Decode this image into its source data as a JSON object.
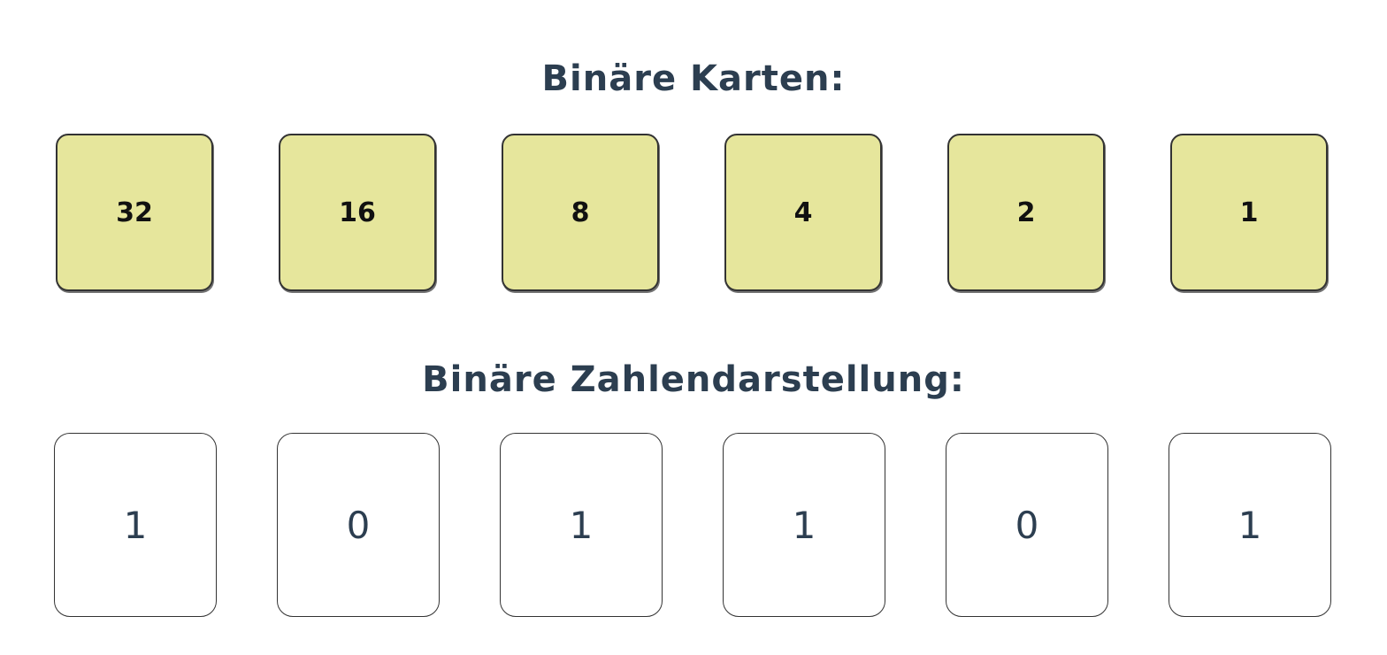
{
  "headings": {
    "cards": "Binäre Karten:",
    "binary": "Binäre Zahlendarstellung:"
  },
  "cards": [
    {
      "value": "32"
    },
    {
      "value": "16"
    },
    {
      "value": "8"
    },
    {
      "value": "4"
    },
    {
      "value": "2"
    },
    {
      "value": "1"
    }
  ],
  "bits": [
    {
      "value": "1"
    },
    {
      "value": "0"
    },
    {
      "value": "1"
    },
    {
      "value": "1"
    },
    {
      "value": "0"
    },
    {
      "value": "1"
    }
  ],
  "colors": {
    "card_face": "#e6e69c",
    "heading_text": "#2c3e50",
    "border": "#333333"
  }
}
